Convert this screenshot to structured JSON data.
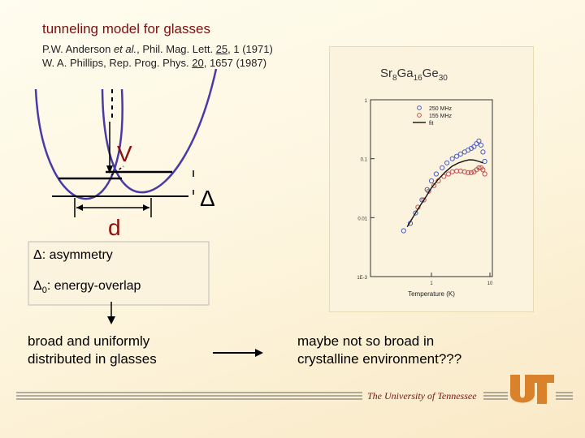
{
  "slide": {
    "title": "tunneling model for glasses",
    "ref1": {
      "pre": "P.W. Anderson ",
      "etal": "et al.",
      "mid": ", Phil. Mag. Lett. ",
      "vol": "25",
      "post": ", 1 (1971)"
    },
    "ref2": {
      "pre": "W. A. Phillips, Rep. Prog. Phys. ",
      "vol": "20",
      "post": ", 1657 (1987)"
    }
  },
  "diagram": {
    "v_label": "V",
    "d_label": "d",
    "delta_symbol": "Δ",
    "asymmetry": {
      "symbol": "Δ",
      "text": ": asymmetry"
    },
    "overlap": {
      "symbol": "Δ",
      "sub": "0",
      "text": ": energy-overlap"
    },
    "glasses_caption": [
      "broad and uniformly",
      "distributed in glasses"
    ],
    "crystal_caption": [
      "maybe not so broad in",
      "crystalline  environment???"
    ]
  },
  "chart_data": {
    "type": "scatter",
    "title": "Sr8Ga16Ge30",
    "title_parts": {
      "base1": "Sr",
      "sub1": "8",
      "base2": "Ga",
      "sub2": "16",
      "base3": "Ge",
      "sub3": "30"
    },
    "xlabel": "Temperature (K)",
    "ylabel": "",
    "xscale": "log",
    "yscale": "log",
    "xlim": [
      0.1,
      10
    ],
    "ylim": [
      0.001,
      1
    ],
    "x_tick_labels": [
      "1",
      "10"
    ],
    "y_tick_labels": [
      "1",
      "0.1",
      "0.01",
      "1E-3"
    ],
    "legend": {
      "position": "top-right",
      "entries": [
        "250 MHz",
        "155 MHz",
        "fit"
      ]
    },
    "series": [
      {
        "name": "250 MHz",
        "marker": "circle",
        "color": "#4b5cc4",
        "x": [
          0.35,
          0.45,
          0.55,
          0.7,
          0.85,
          1.0,
          1.2,
          1.5,
          1.8,
          2.2,
          2.6,
          3.0,
          3.5,
          4.0,
          4.5,
          5.0,
          5.5,
          6.0,
          6.5,
          7.0,
          7.5
        ],
        "y": [
          0.006,
          0.008,
          0.012,
          0.02,
          0.03,
          0.042,
          0.055,
          0.07,
          0.085,
          0.1,
          0.11,
          0.12,
          0.13,
          0.14,
          0.15,
          0.16,
          0.18,
          0.2,
          0.17,
          0.13,
          0.09
        ]
      },
      {
        "name": "155 MHz",
        "marker": "circle",
        "color": "#c45050",
        "x": [
          0.6,
          0.75,
          0.9,
          1.1,
          1.3,
          1.6,
          1.9,
          2.2,
          2.6,
          3.0,
          3.5,
          4.0,
          4.5,
          5.0,
          5.5,
          6.0,
          6.5,
          7.0,
          7.5
        ],
        "y": [
          0.015,
          0.02,
          0.028,
          0.035,
          0.042,
          0.05,
          0.055,
          0.06,
          0.062,
          0.062,
          0.06,
          0.058,
          0.058,
          0.06,
          0.065,
          0.07,
          0.07,
          0.065,
          0.055
        ]
      },
      {
        "name": "fit",
        "marker": "line",
        "color": "#111111",
        "x": [
          0.4,
          0.6,
          0.8,
          1.0,
          1.3,
          1.7,
          2.2,
          2.8,
          3.5,
          4.2,
          5.0,
          6.0,
          7.0
        ],
        "y": [
          0.007,
          0.014,
          0.022,
          0.032,
          0.045,
          0.06,
          0.075,
          0.085,
          0.092,
          0.096,
          0.095,
          0.09,
          0.085
        ]
      }
    ]
  },
  "footer": {
    "university": "The University of Tennessee",
    "logo_text": "UT"
  },
  "colors": {
    "title": "#7a1010",
    "accent": "#8b1010",
    "logo": "#d9822b",
    "series250": "#4b5cc4",
    "series155": "#c45050"
  }
}
